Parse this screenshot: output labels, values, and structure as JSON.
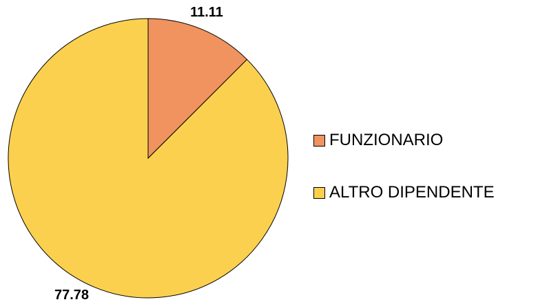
{
  "chart_data": {
    "type": "pie",
    "categories": [
      "FUNZIONARIO",
      "ALTRO DIPENDENTE"
    ],
    "values": [
      11.11,
      77.78
    ],
    "data_labels": [
      "11.11",
      "77.78"
    ],
    "colors": [
      "#f0935e",
      "#fbd04f"
    ],
    "legend_position": "right",
    "start_angle": "12 o'clock",
    "direction": "clockwise"
  }
}
